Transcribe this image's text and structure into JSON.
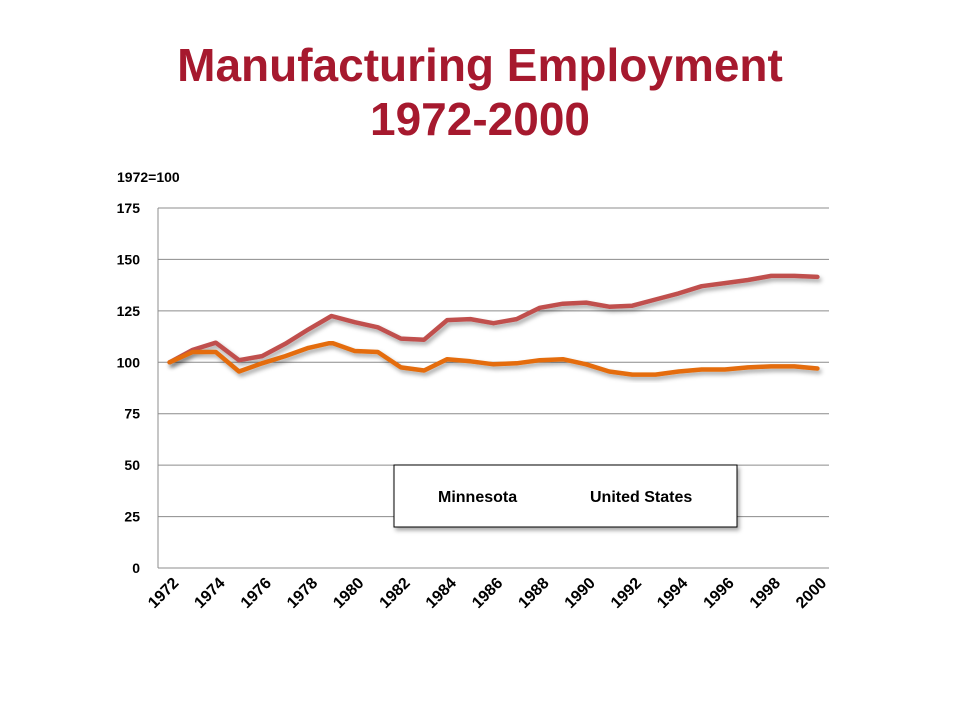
{
  "chart_data": {
    "type": "line",
    "title": "Manufacturing Employment",
    "subtitle": "1972-2000",
    "ylabel": "1972=100",
    "xlabel": "",
    "ylim": [
      0,
      175
    ],
    "yticks": [
      0,
      25,
      50,
      75,
      100,
      125,
      150,
      175
    ],
    "x": [
      1972,
      1973,
      1974,
      1975,
      1976,
      1977,
      1978,
      1979,
      1980,
      1981,
      1982,
      1983,
      1984,
      1985,
      1986,
      1987,
      1988,
      1989,
      1990,
      1991,
      1992,
      1993,
      1994,
      1995,
      1996,
      1997,
      1998,
      1999,
      2000
    ],
    "xtick_labels": [
      "1972",
      "1974",
      "1976",
      "1978",
      "1980",
      "1982",
      "1984",
      "1986",
      "1988",
      "1990",
      "1992",
      "1994",
      "1996",
      "1998",
      "2000"
    ],
    "grid": true,
    "legend_position": "bottom-right",
    "series": [
      {
        "name": "Minnesota",
        "color": "#c0504d",
        "values": [
          100,
          106,
          109.5,
          101,
          103,
          109,
          116,
          122.5,
          119.5,
          117,
          111.5,
          111,
          120.5,
          121,
          119,
          121,
          126.5,
          128.5,
          129,
          127,
          127.5,
          130.5,
          133.5,
          137,
          138.5,
          140,
          142,
          142,
          141.5
        ]
      },
      {
        "name": "United States",
        "color": "#e46c0a",
        "values": [
          100,
          105,
          105,
          95.5,
          99.5,
          103,
          107,
          109.5,
          105.5,
          105,
          97.5,
          96,
          101.5,
          100.5,
          99,
          99.5,
          101,
          101.5,
          99,
          95.5,
          94,
          94,
          95.5,
          96.5,
          96.5,
          97.5,
          98,
          98,
          97
        ]
      }
    ]
  }
}
